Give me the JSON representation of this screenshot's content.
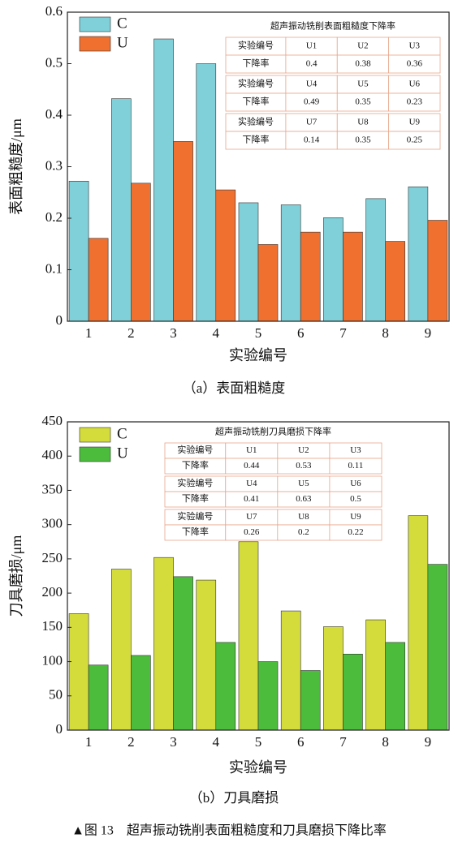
{
  "chart_data": [
    {
      "type": "bar",
      "categories": [
        "1",
        "2",
        "3",
        "4",
        "5",
        "6",
        "7",
        "8",
        "9"
      ],
      "series": [
        {
          "name": "C",
          "color": "#7fd0d8",
          "values": [
            0.272,
            0.432,
            0.548,
            0.5,
            0.23,
            0.226,
            0.201,
            0.238,
            0.261
          ]
        },
        {
          "name": "U",
          "color": "#f07030",
          "values": [
            0.161,
            0.268,
            0.349,
            0.255,
            0.149,
            0.173,
            0.173,
            0.155,
            0.196
          ]
        }
      ],
      "ylim": [
        0,
        0.6
      ],
      "yticks": [
        0,
        0.1,
        0.2,
        0.3,
        0.4,
        0.5,
        0.6
      ],
      "xlabel": "实验编号",
      "ylabel": "表面粗糙度/μm",
      "legend": "upper left",
      "table_title": "超声振动铣削表面粗糙度下降率",
      "table_rows": [
        [
          "实验编号",
          "U1",
          "U2",
          "U3"
        ],
        [
          "下降率",
          "0.4",
          "0.38",
          "0.36"
        ],
        [
          "实验编号",
          "U4",
          "U5",
          "U6"
        ],
        [
          "下降率",
          "0.49",
          "0.35",
          "0.23"
        ],
        [
          "实验编号",
          "U7",
          "U8",
          "U9"
        ],
        [
          "下降率",
          "0.14",
          "0.35",
          "0.25"
        ]
      ],
      "caption": "（a）表面粗糙度"
    },
    {
      "type": "bar",
      "categories": [
        "1",
        "2",
        "3",
        "4",
        "5",
        "6",
        "7",
        "8",
        "9"
      ],
      "series": [
        {
          "name": "C",
          "color": "#d4dc3c",
          "values": [
            170,
            235,
            252,
            219,
            275,
            174,
            151,
            161,
            313
          ]
        },
        {
          "name": "U",
          "color": "#4cbc3c",
          "values": [
            95,
            109,
            224,
            128,
            100,
            87,
            111,
            128,
            242
          ]
        }
      ],
      "ylim": [
        0,
        450
      ],
      "yticks": [
        0,
        50,
        100,
        150,
        200,
        250,
        300,
        350,
        400,
        450
      ],
      "xlabel": "实验编号",
      "ylabel": "刀具磨损/μm",
      "legend": "upper left",
      "table_title": "超声振动铣削刀具磨损下降率",
      "table_rows": [
        [
          "实验编号",
          "U1",
          "U2",
          "U3"
        ],
        [
          "下降率",
          "0.44",
          "0.53",
          "0.11"
        ],
        [
          "实验编号",
          "U4",
          "U5",
          "U6"
        ],
        [
          "下降率",
          "0.41",
          "0.63",
          "0.5"
        ],
        [
          "实验编号",
          "U7",
          "U8",
          "U9"
        ],
        [
          "下降率",
          "0.26",
          "0.2",
          "0.22"
        ]
      ],
      "caption": "（b）刀具磨损"
    }
  ],
  "figure_caption": "▲图 13　超声振动铣削表面粗糙度和刀具磨损下降比率"
}
